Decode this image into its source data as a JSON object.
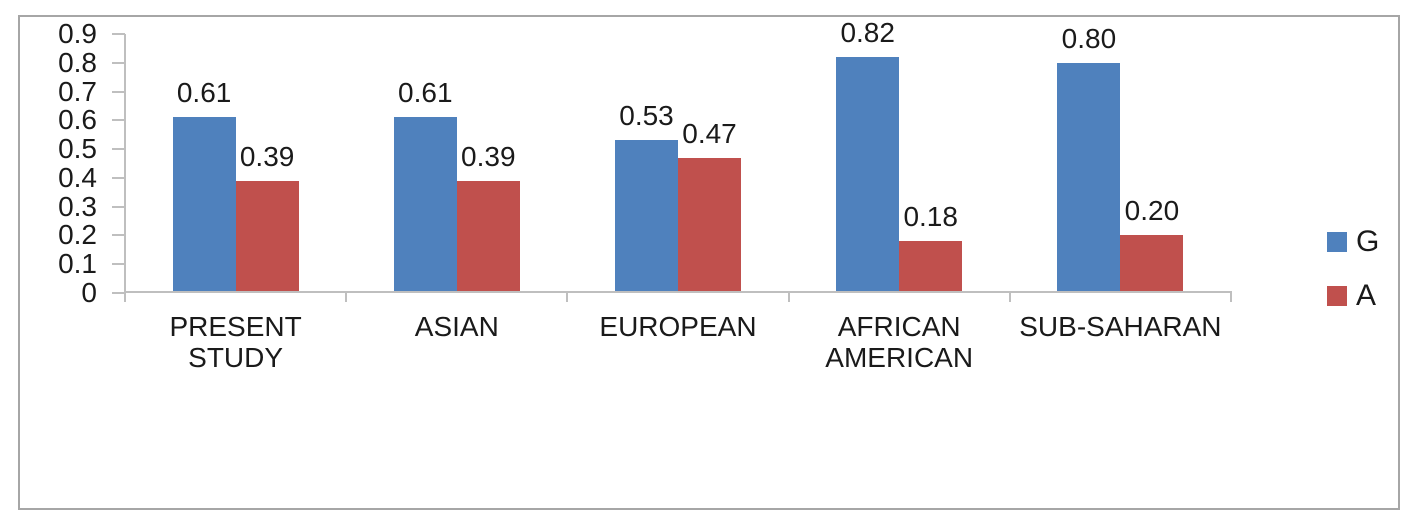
{
  "figure": {
    "background": "#ffffff",
    "frame_border_color": "#a6a6a6"
  },
  "chart_data": {
    "type": "bar",
    "title": "",
    "xlabel": "",
    "ylabel": "",
    "grid": false,
    "categories": [
      "PRESENT STUDY",
      "ASIAN",
      "EUROPEAN",
      "AFRICAN AMERICAN",
      "SUB-SAHARAN"
    ],
    "series": [
      {
        "name": "G",
        "color": "#4F81BD",
        "values": [
          0.61,
          0.61,
          0.53,
          0.82,
          0.8
        ],
        "labels": [
          "0.61",
          "0.61",
          "0.53",
          "0.82",
          "0.80"
        ]
      },
      {
        "name": "A",
        "color": "#C0504D",
        "values": [
          0.39,
          0.39,
          0.47,
          0.18,
          0.2
        ],
        "labels": [
          "0.39",
          "0.39",
          "0.47",
          "0.18",
          "0.20"
        ]
      }
    ],
    "y_axis": {
      "min": 0,
      "max": 0.9,
      "ticks": [
        "0.9",
        "0.8",
        "0.7",
        "0.6",
        "0.5",
        "0.4",
        "0.3",
        "0.2",
        "0.1",
        "0"
      ]
    },
    "legend": {
      "position": "right",
      "entries": [
        "G",
        "A"
      ]
    },
    "axis_color": "#bfbfbf",
    "text_color": "#1a1a1a"
  }
}
